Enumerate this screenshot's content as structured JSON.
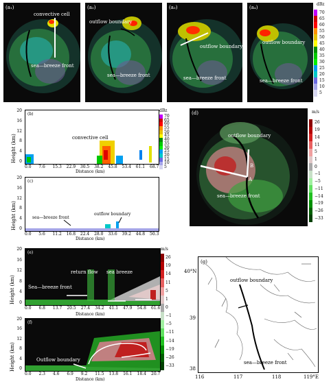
{
  "top_panels": [
    {
      "tag": "(a₁)",
      "labels": [
        "convective cell",
        "sea—breeze front"
      ]
    },
    {
      "tag": "(a₂)",
      "labels": [
        "outflow boundary",
        "sea—breeze front"
      ]
    },
    {
      "tag": "(a₃)",
      "labels": [
        "outflow boundary",
        "sea—breeze front"
      ]
    },
    {
      "tag": "(a₄)",
      "labels": [
        "outflow boundary",
        "sea—breeze front"
      ]
    }
  ],
  "dbz_bar_top": {
    "unit": "dBz",
    "ticks": [
      "70",
      "65",
      "60",
      "55",
      "50",
      "45",
      "40",
      "35",
      "30",
      "25",
      "20",
      "15",
      "10",
      "5"
    ]
  },
  "panel_b": {
    "tag": "(b)",
    "label": "convective cell",
    "unit": "dBz",
    "ylabel": "Height (km)",
    "yticks": [
      "20",
      "16",
      "12",
      "8",
      "4",
      "0"
    ],
    "xticks": [
      "0.0",
      "7.6",
      "15.3",
      "22.9",
      "30.5",
      "38.2",
      "45.8",
      "53.4",
      "61.1",
      "68.7"
    ],
    "xlabel": "Distance (km)",
    "colorbar": [
      "70",
      "65",
      "60",
      "55",
      "50",
      "45",
      "40",
      "35",
      "30",
      "25",
      "20",
      "15",
      "10",
      "5"
    ]
  },
  "panel_c": {
    "tag": "(c)",
    "labels": [
      "sea—breeze front",
      "outflow boundary"
    ],
    "ylabel": "Height (km)",
    "yticks": [
      "20",
      "16",
      "12",
      "8",
      "4",
      "0"
    ],
    "xticks": [
      "0.0",
      "5.6",
      "11.2",
      "16.8",
      "22.4",
      "28.0",
      "33.6",
      "39.2",
      "44.8",
      "50.3"
    ],
    "xlabel": "Distance (km)"
  },
  "panel_d": {
    "tag": "(d)",
    "labels": [
      "outflow boundary",
      "sea—breeze front",
      "B",
      "A"
    ],
    "unit": "m/s",
    "ticks": [
      "26",
      "19",
      "14",
      "11",
      "5",
      "1",
      "0",
      "−1",
      "−5",
      "−11",
      "−14",
      "−19",
      "−26",
      "−33"
    ]
  },
  "panel_e": {
    "tag": "(e)",
    "labels": [
      "return flow",
      "sea breeze",
      "Sea—breeze front"
    ],
    "unit": "m/s",
    "ylabel": "Height (km)",
    "yticks": [
      "20",
      "16",
      "12",
      "8",
      "4",
      "0"
    ],
    "xticks": [
      "0.0",
      "6.8",
      "13.7",
      "20.5",
      "27.4",
      "34.2",
      "41.1",
      "47.9",
      "54.8",
      "61.6"
    ],
    "xlabel": "Distance (km)",
    "colorbar": [
      "26",
      "19",
      "14",
      "11",
      "5",
      "1",
      "0",
      "−1",
      "−5",
      "−11",
      "−14",
      "−19",
      "−26",
      "−33"
    ]
  },
  "panel_f": {
    "tag": "(f)",
    "label": "Outflow boundary",
    "ylabel": "Height (km)",
    "yticks": [
      "20",
      "16",
      "12",
      "8",
      "4",
      "0"
    ],
    "xticks": [
      "0.0",
      "2.3",
      "4.6",
      "6.9",
      "9.2",
      "11.5",
      "13.8",
      "16.1",
      "18.4",
      "20.7"
    ],
    "xlabel": "Distance (km)"
  },
  "panel_g": {
    "tag": "(g)",
    "labels": [
      "outflow boundary",
      "sea—breeze front"
    ],
    "lat_ticks": [
      "40°N",
      "39",
      "38"
    ],
    "lon_ticks": [
      "116",
      "117",
      "118",
      "119°E"
    ]
  },
  "colors": {
    "reflectivity": [
      "#d6d6f0",
      "#a6a6e8",
      "#6b6be0",
      "#00c8c8",
      "#00a0f0",
      "#00f000",
      "#00c800",
      "#009000",
      "#ffff00",
      "#e6c000",
      "#ff9000",
      "#ff0000",
      "#d00000",
      "#c000ff"
    ],
    "velocity": [
      "#8c0000",
      "#b40000",
      "#d42020",
      "#e86060",
      "#f0a0a0",
      "#e0c8c8",
      "#a8a8a8",
      "#c8e0c8",
      "#a0f0a0",
      "#60e060",
      "#20c020",
      "#009000",
      "#006000",
      "#004000"
    ]
  }
}
